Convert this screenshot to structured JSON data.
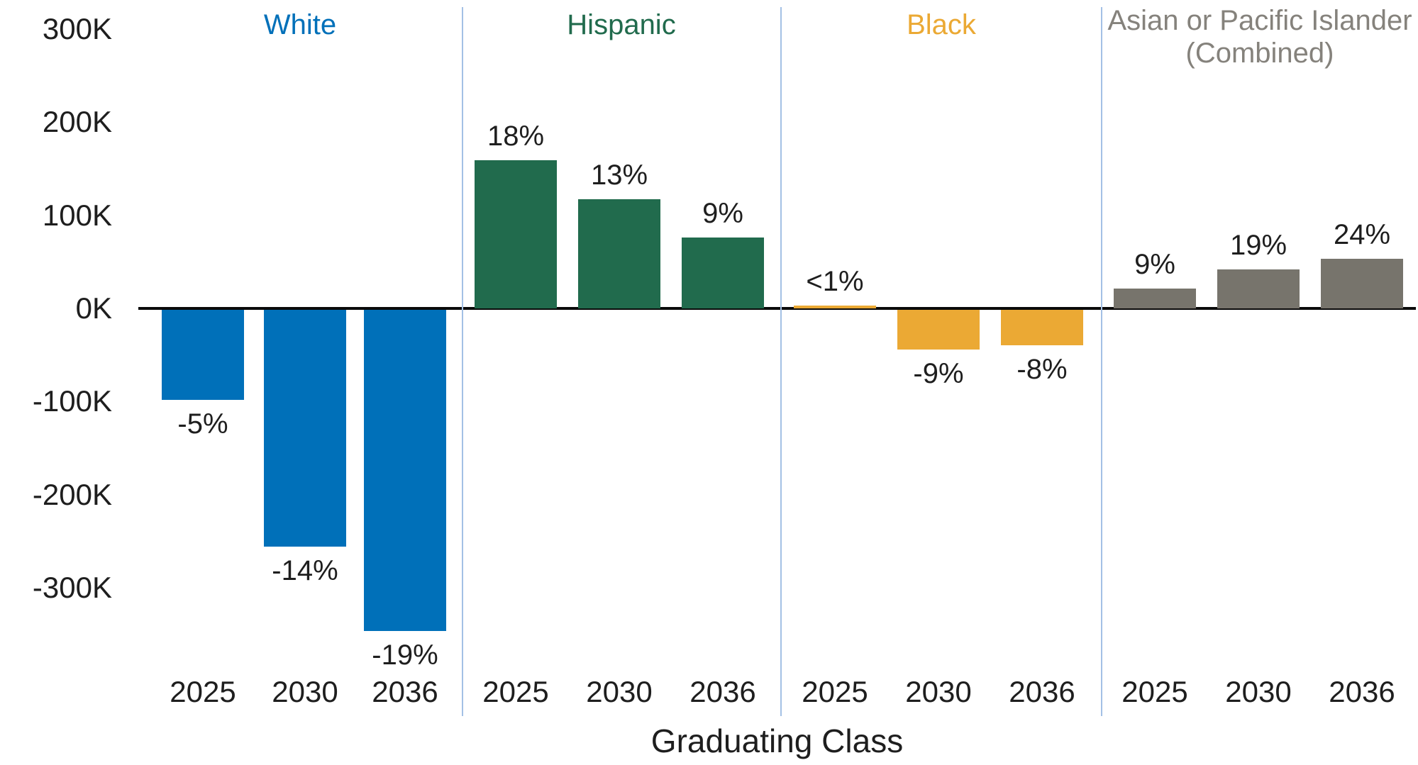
{
  "chart_data": {
    "type": "bar",
    "title": "",
    "xlabel": "Graduating Class",
    "ylabel": "",
    "unit": "thousands of high school graduates (change)",
    "y_axis_ticks": [
      "300K",
      "200K",
      "100K",
      "0K",
      "-100K",
      "-200K",
      "-300K"
    ],
    "y_tick_values_thousands": [
      300,
      200,
      100,
      0,
      -100,
      -200,
      -300
    ],
    "ylim_thousands": [
      -350,
      330
    ],
    "grid": false,
    "legend_position": "group titles above each panel",
    "categories": [
      "2025",
      "2030",
      "2036"
    ],
    "groups": [
      {
        "name": "White",
        "title_lines": [
          "White"
        ],
        "color": "#0070b9",
        "title_color": "#0070b9",
        "values_thousands": [
          -97,
          -254,
          -345
        ],
        "labels": [
          "-5%",
          "-14%",
          "-19%"
        ]
      },
      {
        "name": "Hispanic",
        "title_lines": [
          "Hispanic"
        ],
        "color": "#216b4d",
        "title_color": "#216b4d",
        "values_thousands": [
          159,
          117,
          76
        ],
        "labels": [
          "18%",
          "13%",
          "9%"
        ]
      },
      {
        "name": "Black",
        "title_lines": [
          "Black"
        ],
        "color": "#eba934",
        "title_color": "#eba934",
        "values_thousands": [
          3,
          -43,
          -38
        ],
        "labels": [
          "<1%",
          "-9%",
          "-8%"
        ]
      },
      {
        "name": "Asian or Pacific Islander (Combined)",
        "title_lines": [
          "Asian or Pacific Islander",
          "(Combined)"
        ],
        "color": "#77746c",
        "title_color": "#85827c",
        "values_thousands": [
          21,
          42,
          53
        ],
        "labels": [
          "9%",
          "19%",
          "24%"
        ]
      }
    ],
    "axis_color": "#0a0a0a",
    "divider_color": "#a3c0e5"
  }
}
